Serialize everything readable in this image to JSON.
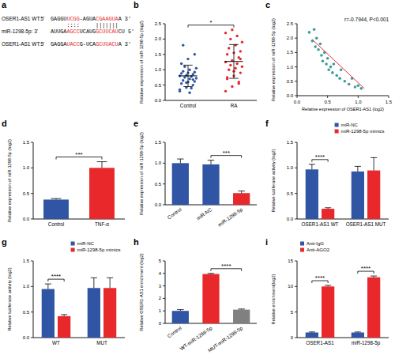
{
  "chart_data": [
    {
      "type": "sequence",
      "title": "a",
      "lines": [
        {
          "label": "OSER1-AS1 WT:5'",
          "segments": [
            {
              "text": "GAGGU",
              "color": "#000000"
            },
            {
              "text": "UCGG",
              "color": "#e8282b"
            },
            {
              "text": "-AGUA",
              "color": "#000000"
            },
            {
              "text": "CGAAGUA",
              "color": "#e8282b"
            },
            {
              "text": "A 3'",
              "color": "#000000"
            }
          ]
        },
        {
          "label": "miR-1298-5p: 3'",
          "segments": [
            {
              "text": "AUUGA",
              "color": "#000000"
            },
            {
              "text": "AGCC",
              "color": "#e8282b"
            },
            {
              "text": "UCAUG",
              "color": "#000000"
            },
            {
              "text": "GCUUCAU",
              "color": "#e8282b"
            },
            {
              "text": "CU 5'",
              "color": "#000000"
            }
          ]
        },
        {
          "label": "OSER1-AS1 WT:5'",
          "segments": [
            {
              "text": "GAGGA",
              "color": "#000000"
            },
            {
              "text": "UACC",
              "color": "#e8282b"
            },
            {
              "text": "G-UCA",
              "color": "#000000"
            },
            {
              "text": "GCUUACU",
              "color": "#e8282b"
            },
            {
              "text": "A 3'",
              "color": "#000000"
            }
          ]
        }
      ],
      "match": "     ::::     |||||||"
    },
    {
      "type": "strip",
      "title": "b",
      "ylabel": "Relative expression of miR-1298-5p (log2)",
      "categories": [
        "Control",
        "RA"
      ],
      "colors": [
        "#2f55a4",
        "#e8282b"
      ],
      "values": [
        [
          0.35,
          0.42,
          0.5,
          0.55,
          0.6,
          0.62,
          0.65,
          0.7,
          0.72,
          0.75,
          0.78,
          0.8,
          0.82,
          0.85,
          0.88,
          0.9,
          0.92,
          0.95,
          1.0,
          1.05,
          1.1,
          0.4,
          0.3,
          0.58,
          0.68,
          1.2,
          1.35,
          1.5,
          1.8,
          0.25
        ],
        [
          0.3,
          0.45,
          0.55,
          0.7,
          0.8,
          0.9,
          1.0,
          1.05,
          1.1,
          1.15,
          1.2,
          1.25,
          1.3,
          1.4,
          1.5,
          1.55,
          1.6,
          1.7,
          1.8,
          1.9,
          2.0,
          2.1,
          2.2,
          2.3,
          0.6,
          0.75,
          0.95,
          1.35
        ]
      ],
      "mean": [
        0.8,
        1.27
      ],
      "errors": [
        0.35,
        0.55
      ],
      "ylim": [
        0,
        2.5
      ],
      "yticks": [
        {
          "value": 0,
          "label": "0.0"
        },
        0.5,
        {
          "value": 1,
          "label": "1.0"
        },
        1.5,
        {
          "value": 2,
          "label": "2.0"
        },
        2.5
      ],
      "annotations": [
        {
          "text": "*",
          "between": [
            0,
            1
          ]
        }
      ]
    },
    {
      "type": "scatter",
      "title": "c",
      "xlabel": "Relative expression of OSER1-AS1 (log2)",
      "ylabel": "Relative expression of miR-1298-5p (log2)",
      "x": [
        0.2,
        0.25,
        0.28,
        0.3,
        0.32,
        0.35,
        0.38,
        0.4,
        0.42,
        0.45,
        0.48,
        0.5,
        0.52,
        0.55,
        0.58,
        0.6,
        0.65,
        0.7,
        0.72,
        0.78,
        0.85,
        0.9,
        0.95,
        1.0,
        1.05
      ],
      "values": [
        2.2,
        1.9,
        2.3,
        1.7,
        2.0,
        1.6,
        1.8,
        1.4,
        1.2,
        1.5,
        1.1,
        1.3,
        0.9,
        1.0,
        0.8,
        1.1,
        0.7,
        0.6,
        0.9,
        0.5,
        0.4,
        0.6,
        0.3,
        0.35,
        0.25
      ],
      "color": "#3a9e9a",
      "trend": {
        "x": [
          0.25,
          1.1
        ],
        "values": [
          1.95,
          0.25
        ],
        "color": "#e8282b"
      },
      "xlim": [
        0,
        1.5
      ],
      "xticks": [
        {
          "value": 0,
          "label": "0.0"
        },
        0.5,
        {
          "value": 1,
          "label": "1.0"
        },
        1.5
      ],
      "ylim": [
        0,
        2.5
      ],
      "yticks": [
        {
          "value": 0,
          "label": "0.0"
        },
        0.5,
        {
          "value": 1,
          "label": "1.0"
        },
        1.5,
        {
          "value": 2,
          "label": "2.0"
        },
        2.5
      ],
      "annotations": [
        {
          "text": "r=-0.7944, P<0.001"
        }
      ]
    },
    {
      "type": "bar",
      "title": "d",
      "ylabel": "Relative expression of miR-1298-5p (log2)",
      "categories": [
        "Control",
        "TNF-α"
      ],
      "values": [
        0.38,
        1.0
      ],
      "errors": [
        0.02,
        0.12
      ],
      "colors": [
        "#2f55a4",
        "#e8282b"
      ],
      "ylim": [
        0,
        1.5
      ],
      "yticks": [
        {
          "value": 0,
          "label": "0.0"
        },
        0.5,
        {
          "value": 1,
          "label": "1.0"
        },
        1.5
      ],
      "annotations": [
        {
          "text": "***",
          "between": [
            0,
            1
          ]
        }
      ]
    },
    {
      "type": "bar",
      "title": "e",
      "ylabel": "Relative expression of miR-1298-5p (log2)",
      "categories": [
        "Control",
        "miR-NC",
        "miR-1298-5p"
      ],
      "values": [
        1.0,
        0.97,
        0.28
      ],
      "errors": [
        0.1,
        0.1,
        0.05
      ],
      "colors": [
        "#2f55a4",
        "#2f55a4",
        "#e8282b"
      ],
      "ylim": [
        0,
        1.5
      ],
      "yticks": [
        {
          "value": 0,
          "label": "0.0"
        },
        0.5,
        {
          "value": 1,
          "label": "1.0"
        },
        1.5
      ],
      "annotations": [
        {
          "text": "***",
          "between": [
            1,
            2
          ]
        }
      ]
    },
    {
      "type": "bar",
      "title": "f",
      "ylabel": "Relative luciferase activity (log2)",
      "categories": [
        "OSER1-AS1 WT",
        "OSER1-AS1 MUT"
      ],
      "series": [
        {
          "name": "miR-NC",
          "color": "#2f55a4",
          "values": [
            0.97,
            0.93
          ],
          "errors": [
            0.1,
            0.1
          ]
        },
        {
          "name": "miR-1298-5p mimics",
          "color": "#e8282b",
          "values": [
            0.2,
            0.95
          ],
          "errors": [
            0.02,
            0.25
          ]
        }
      ],
      "legend": "upper right",
      "ylim": [
        0,
        1.5
      ],
      "yticks": [
        {
          "value": 0,
          "label": "0.0"
        },
        0.5,
        {
          "value": 1,
          "label": "1.0"
        },
        1.5
      ],
      "annotations": [
        {
          "text": "****",
          "category": 0
        }
      ]
    },
    {
      "type": "bar",
      "title": "g",
      "ylabel": "Relative luciferase activity (log2)",
      "categories": [
        "WT",
        "MUT"
      ],
      "series": [
        {
          "name": "miR-NC",
          "color": "#2f55a4",
          "values": [
            0.95,
            0.97
          ],
          "errors": [
            0.1,
            0.2
          ]
        },
        {
          "name": "miR-1298-5p mimics",
          "color": "#e8282b",
          "values": [
            0.42,
            0.97
          ],
          "errors": [
            0.03,
            0.2
          ]
        }
      ],
      "legend": "upper right",
      "ylim": [
        0,
        1.5
      ],
      "yticks": [
        {
          "value": 0,
          "label": "0.0"
        },
        0.5,
        {
          "value": 1,
          "label": "1.0"
        },
        1.5
      ],
      "annotations": [
        {
          "text": "****",
          "category": 0
        }
      ]
    },
    {
      "type": "bar",
      "title": "h",
      "ylabel": "Relative OSER1-AS1 enrichment (log2)",
      "categories": [
        "Control",
        "WT-miR-1298-5p",
        "MUT-miR-1298-5p"
      ],
      "values": [
        1.0,
        3.95,
        1.1
      ],
      "errors": [
        0.1,
        0.05,
        0.05
      ],
      "colors": [
        "#2f55a4",
        "#e8282b",
        "#808080"
      ],
      "ylim": [
        0,
        5
      ],
      "yticks": [
        0,
        1,
        2,
        3,
        4,
        5
      ],
      "annotations": [
        {
          "text": "****",
          "between": [
            1,
            2
          ]
        }
      ]
    },
    {
      "type": "bar",
      "title": "i",
      "ylabel": "Relative enrichment(log2)",
      "categories": [
        "OSER1-AS1",
        "miR-1298-5p"
      ],
      "series": [
        {
          "name": "Anti-IgG",
          "color": "#2f55a4",
          "values": [
            1,
            1
          ],
          "errors": [
            0.1,
            0.1
          ]
        },
        {
          "name": "Anti-AGO2",
          "color": "#e8282b",
          "values": [
            10,
            11.8
          ],
          "errors": [
            0.2,
            0.25
          ]
        }
      ],
      "legend": "upper left",
      "ylim": [
        0,
        15
      ],
      "yticks": [
        0,
        5,
        10,
        15
      ],
      "annotations": [
        {
          "text": "****",
          "category": 0
        },
        {
          "text": "****",
          "category": 1
        }
      ]
    }
  ]
}
